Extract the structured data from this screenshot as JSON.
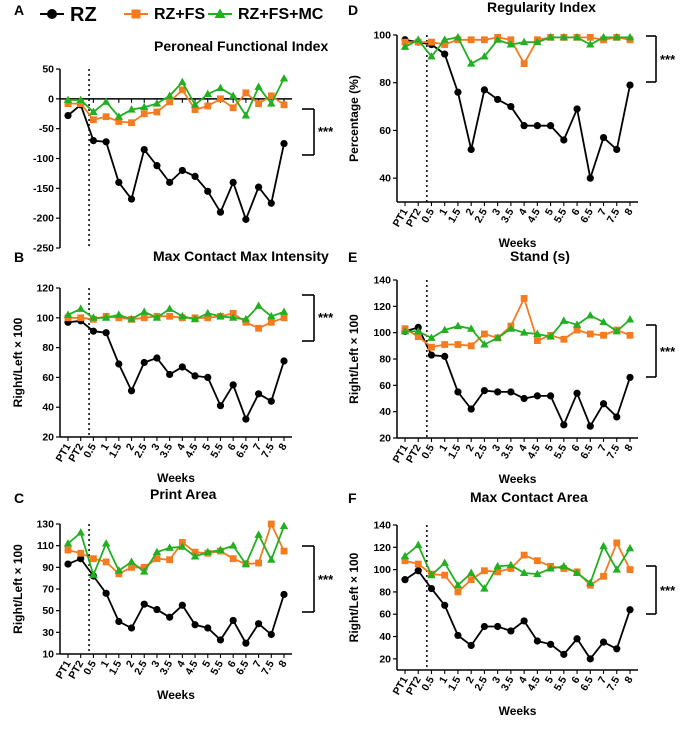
{
  "legend": {
    "items": [
      {
        "label": "RZ",
        "color": "#000000",
        "marker": "circle"
      },
      {
        "label": "RZ+FS",
        "color": "#F47B20",
        "marker": "square"
      },
      {
        "label": "RZ+FS+MC",
        "color": "#22B022",
        "marker": "triangle"
      }
    ]
  },
  "significance_label": "***",
  "chart_data": [
    {
      "panel": "A",
      "type": "line",
      "title": "Peroneal  Functional  Index",
      "ylabel": "",
      "xlabel": "",
      "ylim": [
        -250,
        50
      ],
      "yticks": [
        50,
        0,
        -50,
        -100,
        -150,
        -200,
        -250
      ],
      "categories": [
        "PT1",
        "PT2",
        "0.5",
        "1",
        "1.5",
        "2",
        "2.5",
        "3",
        "3.5",
        "4",
        "4.5",
        "5",
        "5.5",
        "6",
        "6.5",
        "7",
        "7.5",
        "8"
      ],
      "show_xticks": false,
      "series": [
        {
          "name": "RZ",
          "values": [
            -28,
            -10,
            -70,
            -72,
            -140,
            -168,
            -85,
            -112,
            -140,
            -120,
            -130,
            -155,
            -190,
            -140,
            -202,
            -148,
            -175,
            -75
          ]
        },
        {
          "name": "RZ+FS",
          "values": [
            -8,
            -8,
            -35,
            -30,
            -38,
            -40,
            -25,
            -22,
            -5,
            15,
            -18,
            -12,
            0,
            -15,
            10,
            -8,
            5,
            -10
          ]
        },
        {
          "name": "RZ+FS+MC",
          "values": [
            -2,
            -2,
            -22,
            -5,
            -30,
            -18,
            -14,
            -8,
            5,
            28,
            -10,
            8,
            18,
            5,
            -28,
            20,
            -8,
            34
          ]
        }
      ],
      "significance": "***"
    },
    {
      "panel": "B",
      "type": "line",
      "title": "Max Contact Max Intensity",
      "ylabel": "Right/Left × 100",
      "xlabel": "Weeks",
      "ylim": [
        20,
        120
      ],
      "yticks": [
        20,
        40,
        60,
        80,
        100,
        120
      ],
      "categories": [
        "PT1",
        "PT2",
        "0.5",
        "1",
        "1.5",
        "2",
        "2.5",
        "3",
        "3.5",
        "4",
        "4.5",
        "5",
        "5.5",
        "6",
        "6.5",
        "7",
        "7.5",
        "8"
      ],
      "show_xticks": true,
      "series": [
        {
          "name": "RZ",
          "values": [
            97,
            98,
            91,
            90,
            69,
            51,
            70,
            73,
            62,
            67,
            61,
            60,
            41,
            55,
            32,
            49,
            44,
            71
          ]
        },
        {
          "name": "RZ+FS",
          "values": [
            100,
            100,
            99,
            101,
            100,
            99,
            100,
            101,
            101,
            100,
            100,
            100,
            101,
            103,
            97,
            93,
            97,
            100
          ]
        },
        {
          "name": "RZ+FS+MC",
          "values": [
            102,
            106,
            100,
            100,
            102,
            99,
            104,
            100,
            106,
            101,
            99,
            103,
            101,
            100,
            99,
            108,
            101,
            104
          ]
        }
      ],
      "significance": "***"
    },
    {
      "panel": "C",
      "type": "line",
      "title": "Print Area",
      "ylabel": "Right/Left × 100",
      "xlabel": "Weeks",
      "ylim": [
        10,
        130
      ],
      "yticks": [
        10,
        30,
        50,
        70,
        90,
        110,
        130
      ],
      "categories": [
        "PT1",
        "PT2",
        "0.5",
        "1",
        "1.5",
        "2",
        "2.5",
        "3",
        "3.5",
        "4",
        "4.5",
        "5",
        "5.5",
        "6",
        "6.5",
        "7",
        "7.5",
        "8"
      ],
      "show_xticks": true,
      "series": [
        {
          "name": "RZ",
          "values": [
            93,
            98,
            82,
            66,
            40,
            34,
            56,
            51,
            44,
            55,
            37,
            34,
            23,
            41,
            20,
            38,
            28,
            65
          ]
        },
        {
          "name": "RZ+FS",
          "values": [
            106,
            103,
            98,
            95,
            84,
            90,
            90,
            98,
            97,
            113,
            104,
            103,
            105,
            98,
            93,
            94,
            130,
            105
          ]
        },
        {
          "name": "RZ+FS+MC",
          "values": [
            112,
            122,
            83,
            112,
            87,
            95,
            86,
            104,
            108,
            109,
            100,
            104,
            106,
            110,
            93,
            120,
            97,
            128
          ]
        }
      ],
      "significance": "***"
    },
    {
      "panel": "D",
      "type": "line",
      "title": "Regularity  Index",
      "ylabel": "Percentage (%)",
      "xlabel": "Weeks",
      "ylim": [
        30,
        100
      ],
      "yticks": [
        40,
        60,
        80,
        100
      ],
      "categories": [
        "PT1",
        "PT2",
        "0.5",
        "1",
        "1.5",
        "2",
        "2.5",
        "3",
        "3.5",
        "4",
        "4.5",
        "5",
        "5.5",
        "6",
        "6.5",
        "7",
        "7.5",
        "8"
      ],
      "show_xticks": true,
      "series": [
        {
          "name": "RZ",
          "values": [
            98,
            97,
            96,
            92,
            76,
            52,
            77,
            73,
            70,
            62,
            62,
            62,
            56,
            69,
            40,
            57,
            52,
            79
          ]
        },
        {
          "name": "RZ+FS",
          "values": [
            97,
            97,
            97,
            96,
            98,
            98,
            98,
            99,
            98,
            88,
            98,
            99,
            99,
            99,
            99,
            98,
            99,
            98
          ]
        },
        {
          "name": "RZ+FS+MC",
          "values": [
            95,
            98,
            91,
            98,
            99,
            88,
            91,
            98,
            96,
            97,
            97,
            99,
            99,
            99,
            96,
            99,
            99,
            99
          ]
        }
      ],
      "significance": "***"
    },
    {
      "panel": "E",
      "type": "line",
      "title": "Stand (s)",
      "ylabel": "Right/Left × 100",
      "xlabel": "Weeks",
      "ylim": [
        20,
        140
      ],
      "yticks": [
        20,
        40,
        60,
        80,
        100,
        120,
        140
      ],
      "categories": [
        "PT1",
        "PT2",
        "0.5",
        "1",
        "1.5",
        "2",
        "2.5",
        "3",
        "3.5",
        "4",
        "4.5",
        "5",
        "5.5",
        "6",
        "6.5",
        "7",
        "7.5",
        "8"
      ],
      "show_xticks": true,
      "series": [
        {
          "name": "RZ",
          "values": [
            101,
            104,
            83,
            82,
            55,
            42,
            56,
            55,
            55,
            50,
            52,
            52,
            30,
            54,
            29,
            46,
            36,
            66
          ]
        },
        {
          "name": "RZ+FS",
          "values": [
            103,
            97,
            89,
            91,
            91,
            90,
            99,
            96,
            105,
            126,
            94,
            98,
            95,
            102,
            99,
            98,
            102,
            98
          ]
        },
        {
          "name": "RZ+FS+MC",
          "values": [
            101,
            101,
            96,
            102,
            105,
            103,
            91,
            96,
            103,
            100,
            99,
            97,
            109,
            106,
            113,
            108,
            101,
            110
          ]
        }
      ],
      "significance": "***"
    },
    {
      "panel": "F",
      "type": "line",
      "title": "Max Contact  Area",
      "ylabel": "Right/Left × 100",
      "xlabel": "Weeks",
      "ylim": [
        10,
        140
      ],
      "yticks": [
        20,
        40,
        60,
        80,
        100,
        120,
        140
      ],
      "categories": [
        "PT1",
        "PT2",
        "0.5",
        "1",
        "1.5",
        "2",
        "2.5",
        "3",
        "3.5",
        "4",
        "4.5",
        "5",
        "5.5",
        "6",
        "6.5",
        "7",
        "7.5",
        "8"
      ],
      "show_xticks": true,
      "series": [
        {
          "name": "RZ",
          "values": [
            91,
            99,
            83,
            68,
            41,
            32,
            49,
            49,
            45,
            54,
            36,
            33,
            24,
            38,
            20,
            35,
            29,
            64
          ]
        },
        {
          "name": "RZ+FS",
          "values": [
            108,
            105,
            96,
            95,
            80,
            91,
            99,
            98,
            101,
            113,
            108,
            103,
            101,
            98,
            86,
            94,
            124,
            100
          ]
        },
        {
          "name": "RZ+FS+MC",
          "values": [
            112,
            122,
            95,
            106,
            86,
            97,
            83,
            103,
            104,
            97,
            96,
            101,
            103,
            97,
            88,
            121,
            100,
            119
          ]
        }
      ],
      "significance": "***"
    }
  ]
}
